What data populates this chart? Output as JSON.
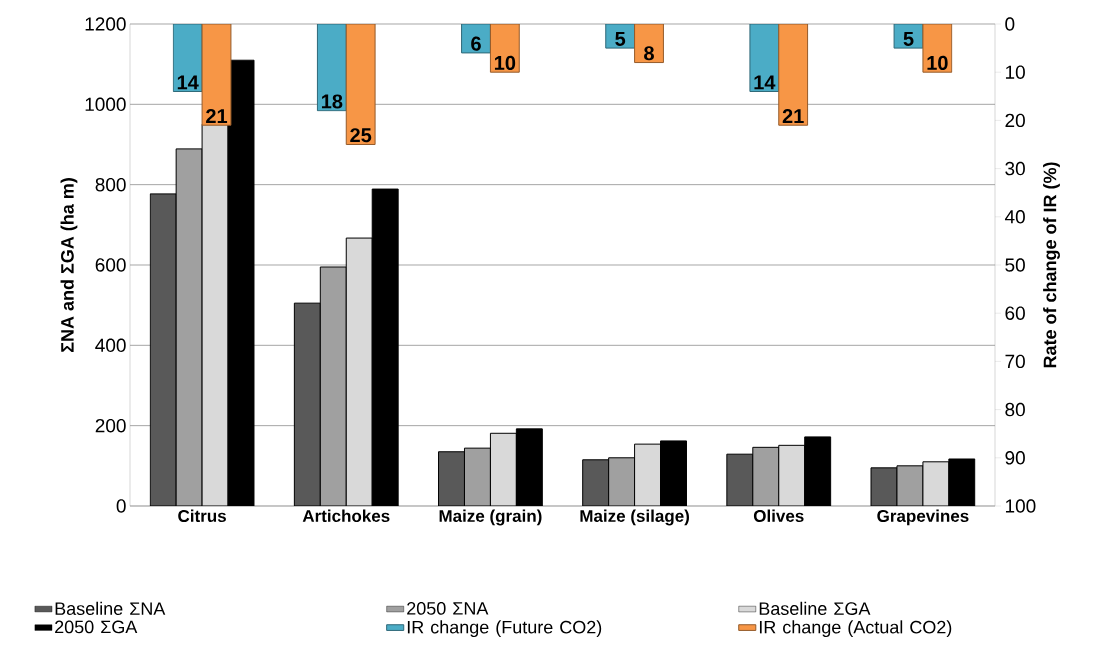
{
  "chart_data": {
    "type": "bar",
    "ylabel": "ΣNA and ΣGA (ha m)",
    "y2label": "Rate of change of IR (%)",
    "categories": [
      "Citrus",
      "Artichokes",
      "Maize (grain)",
      "Maize (silage)",
      "Olives",
      "Grapevines"
    ],
    "ylim": [
      0,
      1200
    ],
    "yticks": [
      0,
      200,
      400,
      600,
      800,
      1000,
      1200
    ],
    "y2lim": [
      100,
      0
    ],
    "y2ticks": [
      0,
      10,
      20,
      30,
      40,
      50,
      60,
      70,
      80,
      90,
      100
    ],
    "grid": "y",
    "legend": "bottom",
    "series": [
      {
        "name": "Baseline ΣNA",
        "color": "#595959",
        "values": [
          777,
          505,
          135,
          115,
          129,
          95
        ]
      },
      {
        "name": "2050 ΣNA",
        "color": "#a0a0a0",
        "values": [
          889,
          595,
          144,
          120,
          146,
          100
        ]
      },
      {
        "name": "Baseline ΣGA",
        "color": "#d9d9d9",
        "values": [
          950,
          667,
          181,
          154,
          151,
          110
        ]
      },
      {
        "name": "2050 ΣGA",
        "color": "#000000",
        "values": [
          1110,
          789,
          192,
          162,
          172,
          117
        ]
      },
      {
        "name": "IR change (Future CO2)",
        "color": "#4bacc6",
        "axis": "y2",
        "values": [
          14,
          18,
          6,
          5,
          14,
          5
        ],
        "value_labels": [
          "14",
          "18",
          "6",
          "5",
          "14",
          "5"
        ]
      },
      {
        "name": "IR change (Actual CO2)",
        "color": "#f79646",
        "axis": "y2",
        "values": [
          21,
          25,
          10,
          8,
          21,
          10
        ],
        "value_labels": [
          "21",
          "25",
          "10",
          "8",
          "21",
          "10"
        ]
      }
    ]
  }
}
